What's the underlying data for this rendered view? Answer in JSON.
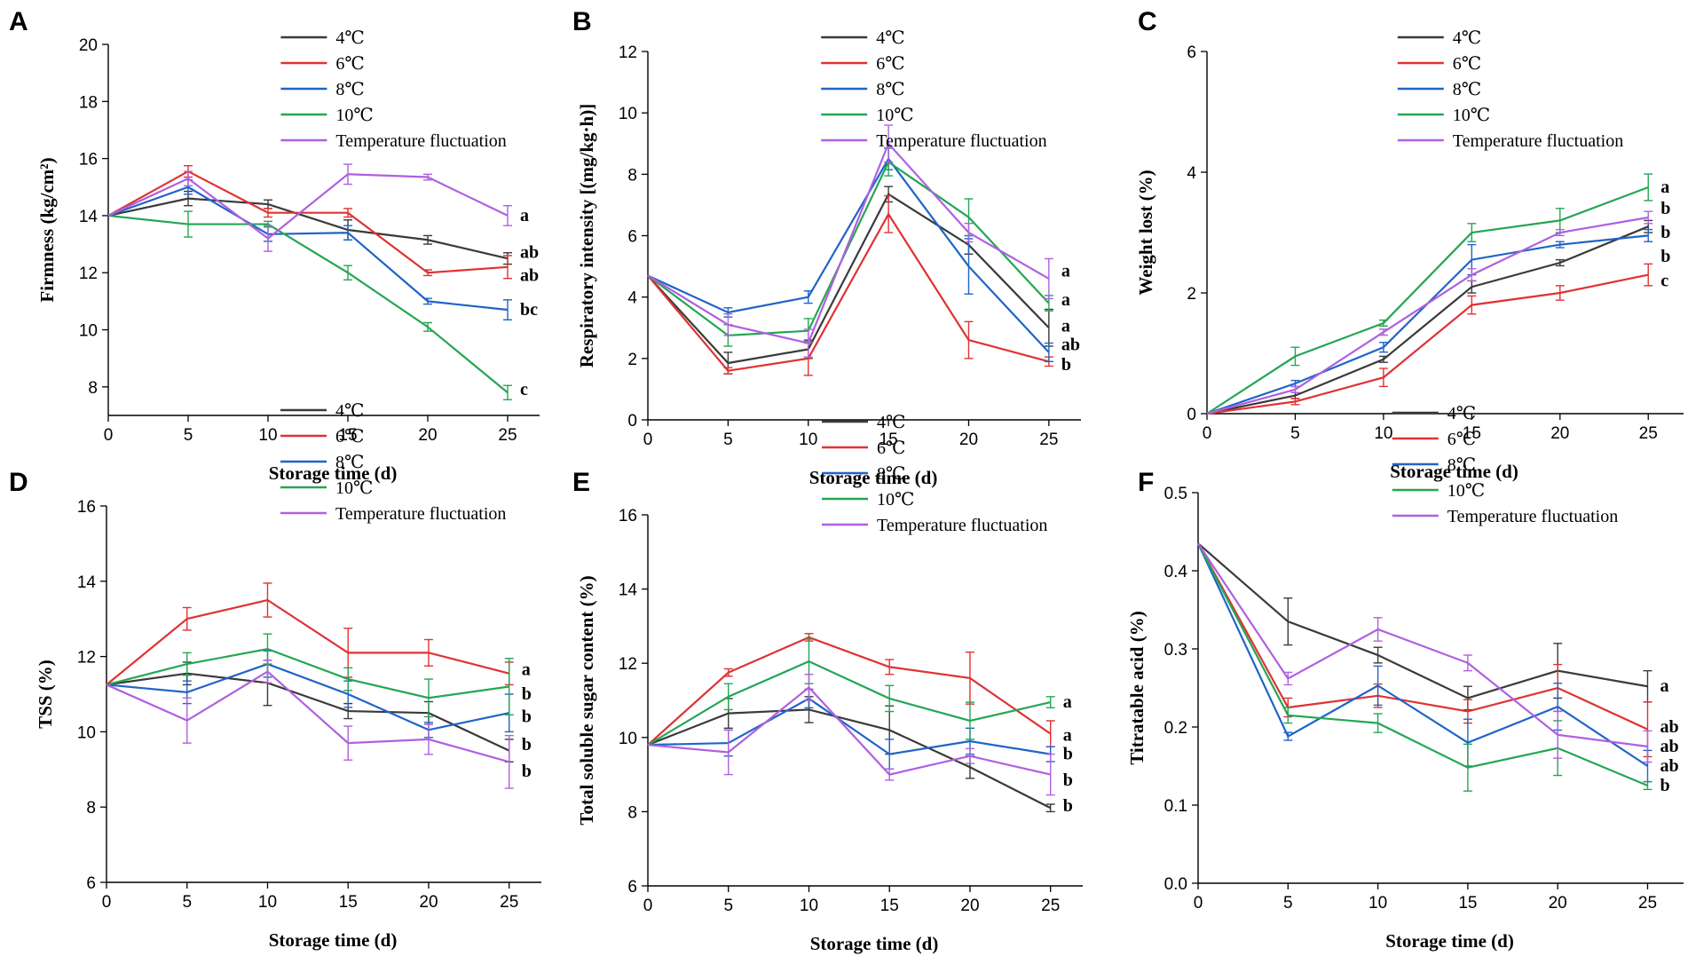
{
  "colors": {
    "4C": "#3a3a3a",
    "6C": "#e03232",
    "8C": "#1f64c8",
    "10C": "#24a654",
    "TF": "#b060e0"
  },
  "series_keys": [
    "4C",
    "6C",
    "8C",
    "10C",
    "TF"
  ],
  "legend_labels": [
    "4℃",
    "6℃",
    "8℃",
    "10℃",
    "Temperature fluctuation"
  ],
  "chart_data": [
    {
      "id": "A",
      "letter": "A",
      "type": "line",
      "xlabel": "Storage time (d)",
      "ylabel": "Firmness (kg/cm²)",
      "xlim": [
        0,
        27
      ],
      "ylim": [
        7,
        20
      ],
      "xticks": [
        0,
        5,
        10,
        15,
        20,
        25
      ],
      "yticks": [
        8,
        10,
        12,
        14,
        16,
        18,
        20
      ],
      "x": [
        0,
        5,
        10,
        15,
        20,
        25
      ],
      "series": [
        {
          "key": "4C",
          "name": "4℃",
          "values": [
            14.0,
            14.6,
            14.4,
            13.5,
            13.15,
            12.5
          ],
          "errors": [
            0,
            0.25,
            0.15,
            0.35,
            0.15,
            0.2
          ]
        },
        {
          "key": "6C",
          "name": "6℃",
          "values": [
            14.0,
            15.55,
            14.1,
            14.1,
            12.0,
            12.2
          ],
          "errors": [
            0,
            0.2,
            0.15,
            0.15,
            0.1,
            0.4
          ]
        },
        {
          "key": "8C",
          "name": "8℃",
          "values": [
            14.0,
            15.0,
            13.35,
            13.4,
            11.0,
            10.7
          ],
          "errors": [
            0,
            0.25,
            0.25,
            0.25,
            0.1,
            0.35
          ]
        },
        {
          "key": "10C",
          "name": "10℃",
          "values": [
            14.0,
            13.7,
            13.7,
            12.0,
            10.1,
            7.8
          ],
          "errors": [
            0,
            0.45,
            0.1,
            0.25,
            0.15,
            0.25
          ]
        },
        {
          "key": "TF",
          "name": "Temperature fluctuation",
          "values": [
            14.0,
            15.3,
            13.2,
            15.45,
            15.35,
            14.0
          ],
          "errors": [
            0,
            0.25,
            0.45,
            0.35,
            0.1,
            0.35
          ]
        }
      ],
      "sig_labels": [
        {
          "text": "a",
          "y": 14.0
        },
        {
          "text": "ab",
          "y": 12.7
        },
        {
          "text": "ab",
          "y": 11.9
        },
        {
          "text": "bc",
          "y": 10.7
        },
        {
          "text": "c",
          "y": 7.9
        }
      ],
      "legend_top": 42
    },
    {
      "id": "B",
      "letter": "B",
      "type": "line",
      "xlabel": "Storage time (d)",
      "ylabel": "Respiratory intensity [(mg/kg·h)]",
      "xlim": [
        0,
        27
      ],
      "ylim": [
        0,
        12
      ],
      "xticks": [
        0,
        5,
        10,
        15,
        20,
        25
      ],
      "yticks": [
        0,
        2,
        4,
        6,
        8,
        10,
        12
      ],
      "x": [
        0,
        5,
        10,
        15,
        20,
        25
      ],
      "series": [
        {
          "key": "4C",
          "name": "4℃",
          "values": [
            4.7,
            1.85,
            2.3,
            7.35,
            5.7,
            3.0
          ],
          "errors": [
            0,
            0.35,
            0.3,
            0.25,
            0.3,
            0.6
          ]
        },
        {
          "key": "6C",
          "name": "6℃",
          "values": [
            4.7,
            1.6,
            2.0,
            6.7,
            2.6,
            1.9
          ],
          "errors": [
            0,
            0.1,
            0.55,
            0.6,
            0.6,
            0.15
          ]
        },
        {
          "key": "8C",
          "name": "8℃",
          "values": [
            4.7,
            3.5,
            4.0,
            8.5,
            5.0,
            2.2
          ],
          "errors": [
            0,
            0.15,
            0.2,
            0.35,
            0.9,
            0.3
          ]
        },
        {
          "key": "10C",
          "name": "10℃",
          "values": [
            4.7,
            2.75,
            2.9,
            8.4,
            6.6,
            3.8
          ],
          "errors": [
            0,
            0.35,
            0.4,
            0.45,
            0.6,
            0.25
          ]
        },
        {
          "key": "TF",
          "name": "Temperature fluctuation",
          "values": [
            4.7,
            3.1,
            2.5,
            9.0,
            6.1,
            4.6
          ],
          "errors": [
            0,
            0.35,
            0.45,
            0.6,
            0.3,
            0.65
          ]
        }
      ],
      "sig_labels": [
        {
          "text": "a",
          "y": 4.85
        },
        {
          "text": "a",
          "y": 3.9
        },
        {
          "text": "a",
          "y": 3.05
        },
        {
          "text": "ab",
          "y": 2.45
        },
        {
          "text": "b",
          "y": 1.8
        }
      ],
      "legend_top": 42
    },
    {
      "id": "C",
      "letter": "C",
      "type": "line",
      "xlabel": "Storage time (d)",
      "ylabel": "Weight lost (%)",
      "xlim": [
        0,
        27
      ],
      "ylim": [
        0,
        6
      ],
      "xticks": [
        0,
        5,
        10,
        15,
        20,
        25
      ],
      "yticks": [
        0,
        2,
        4,
        6
      ],
      "x": [
        0,
        5,
        10,
        15,
        20,
        25
      ],
      "series": [
        {
          "key": "4C",
          "name": "4℃",
          "values": [
            0,
            0.3,
            0.9,
            2.1,
            2.5,
            3.1
          ],
          "errors": [
            0,
            0.05,
            0.05,
            0.1,
            0.05,
            0.1
          ]
        },
        {
          "key": "6C",
          "name": "6℃",
          "values": [
            0,
            0.2,
            0.6,
            1.8,
            2.0,
            2.3
          ],
          "errors": [
            0,
            0.05,
            0.15,
            0.15,
            0.12,
            0.18
          ]
        },
        {
          "key": "8C",
          "name": "8℃",
          "values": [
            0,
            0.5,
            1.1,
            2.55,
            2.8,
            2.95
          ],
          "errors": [
            0,
            0.05,
            0.08,
            0.25,
            0.05,
            0.1
          ]
        },
        {
          "key": "10C",
          "name": "10℃",
          "values": [
            0,
            0.95,
            1.5,
            3.0,
            3.2,
            3.75
          ],
          "errors": [
            0,
            0.15,
            0.05,
            0.15,
            0.2,
            0.22
          ]
        },
        {
          "key": "TF",
          "name": "Temperature fluctuation",
          "values": [
            0,
            0.4,
            1.35,
            2.3,
            3.0,
            3.25
          ],
          "errors": [
            0,
            0.05,
            0.05,
            0.1,
            0.05,
            0.1
          ]
        }
      ],
      "sig_labels": [
        {
          "text": "a",
          "y": 3.75
        },
        {
          "text": "b",
          "y": 3.4
        },
        {
          "text": "b",
          "y": 3.0
        },
        {
          "text": "b",
          "y": 2.6
        },
        {
          "text": "c",
          "y": 2.2
        }
      ],
      "legend_top": 42
    },
    {
      "id": "D",
      "letter": "D",
      "type": "line",
      "xlabel": "Storage time (d)",
      "ylabel": "TSS (%)",
      "xlim": [
        0,
        27
      ],
      "ylim": [
        6,
        16
      ],
      "xticks": [
        0,
        5,
        10,
        15,
        20,
        25
      ],
      "yticks": [
        6,
        8,
        10,
        12,
        14,
        16
      ],
      "x": [
        0,
        5,
        10,
        15,
        20,
        25
      ],
      "series": [
        {
          "key": "4C",
          "name": "4℃",
          "values": [
            11.25,
            11.55,
            11.3,
            10.55,
            10.5,
            9.5
          ],
          "errors": [
            0,
            0.3,
            0.6,
            0.2,
            0.3,
            0.3
          ]
        },
        {
          "key": "6C",
          "name": "6℃",
          "values": [
            11.25,
            13.0,
            13.5,
            12.1,
            12.1,
            11.55
          ],
          "errors": [
            0,
            0.3,
            0.45,
            0.65,
            0.35,
            0.3
          ]
        },
        {
          "key": "8C",
          "name": "8℃",
          "values": [
            11.25,
            11.05,
            11.8,
            11.0,
            10.05,
            10.5
          ],
          "errors": [
            0,
            0.3,
            0.35,
            0.35,
            0.2,
            0.5
          ]
        },
        {
          "key": "10C",
          "name": "10℃",
          "values": [
            11.25,
            11.8,
            12.2,
            11.4,
            10.9,
            11.2
          ],
          "errors": [
            0,
            0.3,
            0.4,
            0.3,
            0.5,
            0.75
          ]
        },
        {
          "key": "TF",
          "name": "Temperature fluctuation",
          "values": [
            11.25,
            10.3,
            11.6,
            9.7,
            9.8,
            9.2
          ],
          "errors": [
            0,
            0.6,
            0.3,
            0.45,
            0.4,
            0.7
          ]
        }
      ],
      "sig_labels": [
        {
          "text": "a",
          "y": 11.65
        },
        {
          "text": "b",
          "y": 11.0
        },
        {
          "text": "b",
          "y": 10.4
        },
        {
          "text": "b",
          "y": 9.65
        },
        {
          "text": "b",
          "y": 8.95
        }
      ],
      "legend_top": 462
    },
    {
      "id": "E",
      "letter": "E",
      "type": "line",
      "xlabel": "Storage time (d)",
      "ylabel": "Total soluble sugar content (%)",
      "xlim": [
        0,
        27
      ],
      "ylim": [
        6,
        16
      ],
      "xticks": [
        0,
        5,
        10,
        15,
        20,
        25
      ],
      "yticks": [
        6,
        8,
        10,
        12,
        14,
        16
      ],
      "x": [
        0,
        5,
        10,
        15,
        20,
        25
      ],
      "series": [
        {
          "key": "4C",
          "name": "4℃",
          "values": [
            9.8,
            10.65,
            10.75,
            10.2,
            9.2,
            8.1
          ],
          "errors": [
            0,
            0.4,
            0.35,
            0.65,
            0.3,
            0.1
          ]
        },
        {
          "key": "6C",
          "name": "6℃",
          "values": [
            9.8,
            11.75,
            12.7,
            11.9,
            11.6,
            10.1
          ],
          "errors": [
            0,
            0.1,
            0.1,
            0.2,
            0.7,
            0.35
          ]
        },
        {
          "key": "8C",
          "name": "8℃",
          "values": [
            9.8,
            9.85,
            11.05,
            9.55,
            9.9,
            9.55
          ],
          "errors": [
            0,
            0.35,
            0.25,
            0.4,
            0.35,
            0.2
          ]
        },
        {
          "key": "10C",
          "name": "10℃",
          "values": [
            9.8,
            11.1,
            12.05,
            11.05,
            10.45,
            10.95
          ],
          "errors": [
            0,
            0.35,
            0.6,
            0.35,
            0.5,
            0.15
          ]
        },
        {
          "key": "TF",
          "name": "Temperature fluctuation",
          "values": [
            9.8,
            9.6,
            11.35,
            9.0,
            9.5,
            9.0
          ],
          "errors": [
            0,
            0.6,
            0.35,
            0.15,
            0.2,
            0.55
          ]
        }
      ],
      "sig_labels": [
        {
          "text": "a",
          "y": 10.95
        },
        {
          "text": "a",
          "y": 10.05
        },
        {
          "text": "b",
          "y": 9.55
        },
        {
          "text": "b",
          "y": 8.85
        },
        {
          "text": "b",
          "y": 8.15
        }
      ],
      "legend_top": 475
    },
    {
      "id": "F",
      "letter": "F",
      "type": "line",
      "xlabel": "Storage time (d)",
      "ylabel": "Titratable acid (%)",
      "xlim": [
        0,
        27
      ],
      "ylim": [
        0,
        0.5
      ],
      "xticks": [
        0,
        5,
        10,
        15,
        20,
        25
      ],
      "yticks": [
        0.0,
        0.1,
        0.2,
        0.3,
        0.4,
        0.5
      ],
      "ytick_labels": [
        "0.0",
        "0.1",
        "0.2",
        "0.3",
        "0.4",
        "0.5"
      ],
      "x": [
        0,
        5,
        10,
        15,
        20,
        25
      ],
      "series": [
        {
          "key": "4C",
          "name": "4℃",
          "values": [
            0.435,
            0.335,
            0.292,
            0.237,
            0.272,
            0.252
          ],
          "errors": [
            0,
            0.03,
            0.01,
            0.015,
            0.035,
            0.02
          ]
        },
        {
          "key": "6C",
          "name": "6℃",
          "values": [
            0.435,
            0.225,
            0.24,
            0.22,
            0.25,
            0.197
          ],
          "errors": [
            0,
            0.012,
            0.015,
            0.015,
            0.03,
            0.035
          ]
        },
        {
          "key": "8C",
          "name": "8℃",
          "values": [
            0.435,
            0.188,
            0.253,
            0.18,
            0.226,
            0.15
          ],
          "errors": [
            0,
            0.005,
            0.025,
            0.03,
            0.03,
            0.02
          ]
        },
        {
          "key": "10C",
          "name": "10℃",
          "values": [
            0.435,
            0.215,
            0.205,
            0.148,
            0.173,
            0.125
          ],
          "errors": [
            0,
            0.01,
            0.012,
            0.03,
            0.035,
            0.005
          ]
        },
        {
          "key": "TF",
          "name": "Temperature fluctuation",
          "values": [
            0.435,
            0.262,
            0.325,
            0.282,
            0.19,
            0.175
          ],
          "errors": [
            0,
            0.008,
            0.015,
            0.01,
            0.03,
            0.02
          ]
        }
      ],
      "sig_labels": [
        {
          "text": "a",
          "y": 0.252
        },
        {
          "text": "ab",
          "y": 0.2
        },
        {
          "text": "ab",
          "y": 0.175
        },
        {
          "text": "ab",
          "y": 0.15
        },
        {
          "text": "b",
          "y": 0.125
        }
      ],
      "legend_top": 465
    }
  ]
}
